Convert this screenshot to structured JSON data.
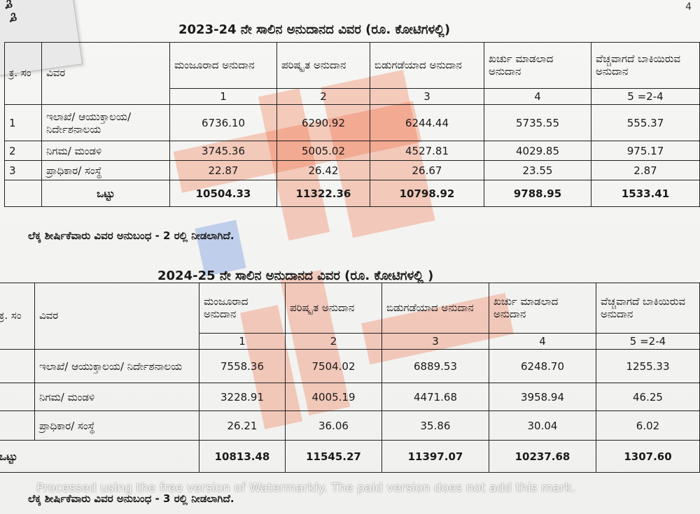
{
  "page_number": "4",
  "corner_text": "ಇ ಇ",
  "table1": {
    "title": "2023-24 ನೇ ಸಾಲಿನ ಅನುದಾನದ ವಿವರ (ರೂ. ಕೋಟಿಗಳಲ್ಲಿ)",
    "headers": {
      "sl": "ಕ್ರ. ಸಂ",
      "desc": "ವಿವರ",
      "sanctioned": "ಮಂಜೂರಾದ ಅನುದಾನ",
      "revised": "ಪರಿಷ್ಕೃತ ಅನುದಾನ",
      "released": "ಬಿಡುಗಡೆಯಾದ ಅನುದಾನ",
      "spent": "ಖರ್ಚು ಮಾಡಲಾದ ಅನುದಾನ",
      "balance": "ವೆಚ್ಚವಾಗದೆ ಬಾಕಿಯಿರುವ ಅನುದಾನ"
    },
    "colnums": [
      "1",
      "2",
      "3",
      "4",
      "5 =2-4"
    ],
    "rows": [
      {
        "sl": "1",
        "desc": "ಇಲಾಖೆ/ ಆಯುಕ್ತಾಲಯ/ ನಿರ್ದೇಶನಾಲಯ",
        "v": [
          "6736.10",
          "6290.92",
          "6244.44",
          "5735.55",
          "555.37"
        ]
      },
      {
        "sl": "2",
        "desc": "ನಿಗಮ/ ಮಂಡಳಿ",
        "v": [
          "3745.36",
          "5005.02",
          "4527.81",
          "4029.85",
          "975.17"
        ]
      },
      {
        "sl": "3",
        "desc": "ಪ್ರಾಧಿಕಾರ/ ಸಂಸ್ಥೆ",
        "v": [
          "22.87",
          "26.42",
          "26.67",
          "23.55",
          "2.87"
        ]
      }
    ],
    "total": {
      "label": "ಒಟ್ಟು",
      "v": [
        "10504.33",
        "11322.36",
        "10798.92",
        "9788.95",
        "1533.41"
      ]
    },
    "note": "ಲೆಕ್ಕ ಶೀರ್ಷಿಕೆವಾರು ವಿವರ ಅನುಬಂಧ - 2 ರಲ್ಲಿ ನೀಡಲಾಗಿದೆ."
  },
  "table2": {
    "title": "2024-25 ನೇ ಸಾಲಿನ ಅನುದಾನದ ವಿವರ (ರೂ. ಕೋಟಿಗಳಲ್ಲಿ )",
    "headers": {
      "sl": "ಕ್ರ. ಸಂ",
      "desc": "ವಿವರ",
      "sanctioned": "ಮಂಜೂರಾದ ಅನುದಾನ",
      "revised": "ಪರಿಷ್ಕೃತ ಅನುದಾನ",
      "released": "ಬಿಡುಗಡೆಯಾದ ಅನುದಾನ",
      "spent": "ಖರ್ಚು ಮಾಡಲಾದ ಅನುದಾನ",
      "balance": "ವೆಚ್ಚವಾಗದೆ ಬಾಕಿಯಿರುವ ಅನುದಾನ"
    },
    "colnums": [
      "1",
      "2",
      "3",
      "4",
      "5 =2-4"
    ],
    "rows": [
      {
        "sl": "",
        "desc": "ಇಲಾಖೆ/ ಆಯುಕ್ತಾಲಯ/ ನಿರ್ದೇಶನಾಲಯ",
        "v": [
          "7558.36",
          "7504.02",
          "6889.53",
          "6248.70",
          "1255.33"
        ]
      },
      {
        "sl": "",
        "desc": "ನಿಗಮ/ ಮಂಡಳಿ",
        "v": [
          "3228.91",
          "4005.19",
          "4471.68",
          "3958.94",
          "46.25"
        ]
      },
      {
        "sl": "",
        "desc": "ಪ್ರಾಧಿಕಾರ/ ಸಂಸ್ಥೆ",
        "v": [
          "26.21",
          "36.06",
          "35.86",
          "30.04",
          "6.02"
        ]
      }
    ],
    "total": {
      "label": "ಒಟ್ಟು",
      "v": [
        "10813.48",
        "11545.27",
        "11397.07",
        "10237.68",
        "1307.60"
      ]
    },
    "note": "ಲೆಕ್ಕ ಶೀರ್ಷಿಕೆವಾರು ವಿವರ ಅನುಬಂಧ - 3 ರಲ್ಲಿ ನೀಡಲಾಗಿದೆ."
  },
  "watermark_notice": "Processed using the free version of Watermarkly. The paid version does not add this mark.",
  "colors": {
    "overlay_red": "#f05a2a",
    "overlay_blue": "#3b6fd8"
  }
}
